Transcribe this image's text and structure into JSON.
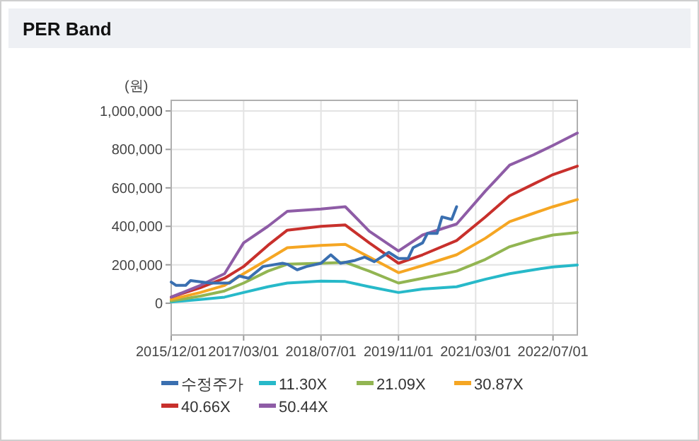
{
  "chart_data": {
    "type": "line",
    "title": "PER Band",
    "ylabel": "(원)",
    "xlim": [
      "2015-12-01",
      "2022-12-01"
    ],
    "xticks": [
      {
        "value": "2015-12-01",
        "label": "2015/12/01"
      },
      {
        "value": "2017-03-01",
        "label": "2017/03/01"
      },
      {
        "value": "2018-07-01",
        "label": "2018/07/01"
      },
      {
        "value": "2019-11-01",
        "label": "2019/11/01"
      },
      {
        "value": "2021-03-01",
        "label": "2021/03/01"
      },
      {
        "value": "2022-07-01",
        "label": "2022/07/01"
      }
    ],
    "ylim": [
      -165000,
      1055000
    ],
    "yticks": [
      {
        "value": 0,
        "label": "0"
      },
      {
        "value": 200000,
        "label": "200,000"
      },
      {
        "value": 400000,
        "label": "400,000"
      },
      {
        "value": 600000,
        "label": "600,000"
      },
      {
        "value": 800000,
        "label": "800,000"
      },
      {
        "value": 1000000,
        "label": "1,000,000"
      }
    ],
    "grid": true,
    "legend": "bottom",
    "marker": "none",
    "line_style": "solid",
    "series": [
      {
        "name": "수정주가",
        "color": "#3a6fb0",
        "x": [
          "2015-12",
          "2016-01",
          "2016-03",
          "2016-04",
          "2016-08",
          "2016-12",
          "2017-02",
          "2017-04",
          "2017-07",
          "2017-11",
          "2017-12",
          "2018-02",
          "2018-04",
          "2018-07",
          "2018-09",
          "2018-11",
          "2019-02",
          "2019-04",
          "2019-06",
          "2019-09",
          "2019-11",
          "2020-01",
          "2020-02",
          "2020-04",
          "2020-05",
          "2020-07",
          "2020-08",
          "2020-10",
          "2020-11"
        ],
        "values": [
          110000,
          93000,
          93000,
          118000,
          105000,
          105000,
          142000,
          130000,
          191000,
          208000,
          203000,
          174000,
          191000,
          208000,
          252000,
          208000,
          223000,
          240000,
          216000,
          265000,
          233000,
          233000,
          289000,
          314000,
          363000,
          363000,
          449000,
          436000,
          502000
        ]
      },
      {
        "name": "11.30X",
        "color": "#27b9c9",
        "x": [
          "2015-12",
          "2016-06",
          "2016-11",
          "2017-03",
          "2017-08",
          "2017-12",
          "2018-07",
          "2018-12",
          "2019-05",
          "2019-11",
          "2020-04",
          "2020-11",
          "2021-05",
          "2021-10",
          "2022-03",
          "2022-07",
          "2022-12"
        ],
        "values": [
          7000,
          20000,
          32000,
          56000,
          86000,
          105000,
          115000,
          113000,
          86000,
          56000,
          74000,
          86000,
          125000,
          154000,
          174000,
          189000,
          199000
        ]
      },
      {
        "name": "21.09X",
        "color": "#92b552",
        "x": [
          "2015-12",
          "2016-06",
          "2016-11",
          "2017-03",
          "2017-08",
          "2017-12",
          "2018-07",
          "2018-12",
          "2019-05",
          "2019-11",
          "2020-04",
          "2020-11",
          "2021-05",
          "2021-10",
          "2022-03",
          "2022-07",
          "2022-12"
        ],
        "values": [
          12000,
          37000,
          64000,
          105000,
          167000,
          203000,
          208000,
          213000,
          167000,
          105000,
          130000,
          167000,
          228000,
          294000,
          331000,
          355000,
          368000
        ]
      },
      {
        "name": "30.87X",
        "color": "#f5a623",
        "x": [
          "2015-12",
          "2016-06",
          "2016-11",
          "2017-03",
          "2017-08",
          "2017-12",
          "2018-07",
          "2018-12",
          "2019-05",
          "2019-11",
          "2020-04",
          "2020-11",
          "2021-05",
          "2021-10",
          "2022-03",
          "2022-07",
          "2022-12"
        ],
        "values": [
          20000,
          56000,
          93000,
          154000,
          228000,
          289000,
          301000,
          306000,
          240000,
          159000,
          196000,
          252000,
          338000,
          424000,
          468000,
          502000,
          539000
        ]
      },
      {
        "name": "40.66X",
        "color": "#c8302c",
        "x": [
          "2015-12",
          "2016-06",
          "2016-11",
          "2017-03",
          "2017-08",
          "2017-12",
          "2018-07",
          "2018-12",
          "2019-05",
          "2019-11",
          "2020-04",
          "2020-11",
          "2021-05",
          "2021-10",
          "2022-03",
          "2022-07",
          "2022-12"
        ],
        "values": [
          32000,
          81000,
          130000,
          191000,
          301000,
          380000,
          400000,
          407000,
          314000,
          208000,
          252000,
          326000,
          449000,
          559000,
          620000,
          669000,
          713000
        ]
      },
      {
        "name": "50.44X",
        "color": "#8e5ca6",
        "x": [
          "2015-12",
          "2016-06",
          "2016-11",
          "2017-03",
          "2017-08",
          "2017-12",
          "2018-07",
          "2018-12",
          "2019-05",
          "2019-11",
          "2020-04",
          "2020-11",
          "2021-05",
          "2021-10",
          "2022-03",
          "2022-07",
          "2022-12"
        ],
        "values": [
          32000,
          93000,
          154000,
          314000,
          400000,
          478000,
          490000,
          502000,
          375000,
          272000,
          355000,
          412000,
          583000,
          718000,
          772000,
          821000,
          885000
        ]
      }
    ]
  }
}
